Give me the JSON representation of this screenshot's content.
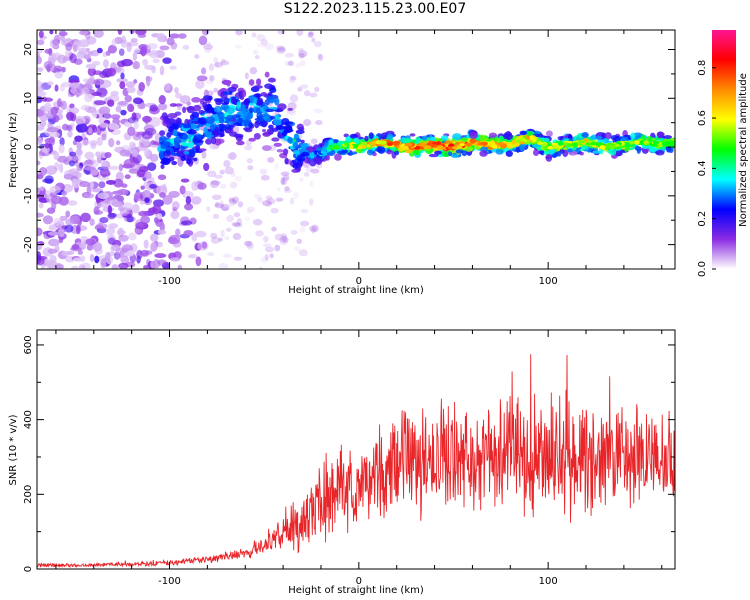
{
  "page": {
    "title": "S122.2023.115.23.00.E07"
  },
  "chart_data": [
    {
      "type": "heatmap",
      "xlabel": "Height of straight line (km)",
      "ylabel": "Frequency (Hz)",
      "xlim": [
        -170,
        167
      ],
      "ylim": [
        -25,
        24
      ],
      "x_ticks": [
        -100,
        0,
        100
      ],
      "y_ticks": [
        -20,
        -10,
        0,
        10,
        20
      ],
      "colorbar": {
        "label": "Normalized spectral amplitude",
        "range": [
          0.0,
          0.95
        ],
        "ticks": [
          "0.0",
          "0.2",
          "0.4",
          "0.6",
          "0.8"
        ],
        "colors": [
          "#ffffff",
          "#8a2be2",
          "#0000ff",
          "#00ffff",
          "#00ff00",
          "#ffff00",
          "#ff8c00",
          "#ff0000",
          "#ff1493"
        ]
      },
      "ridge": {
        "x": [
          -105,
          -95,
          -90,
          -85,
          -80,
          -75,
          -70,
          -65,
          -60,
          -55,
          -50,
          -45,
          -40,
          -35,
          -30,
          -25,
          -20,
          -15,
          -10,
          -5,
          0,
          10,
          20,
          30,
          40,
          50,
          60,
          70,
          80,
          85,
          90,
          95,
          100,
          110,
          120,
          130,
          140,
          150,
          160,
          167
        ],
        "y": [
          0,
          2,
          1,
          3,
          5,
          6,
          7,
          8,
          6,
          9,
          7,
          8,
          4,
          1,
          0,
          -2,
          -1,
          0,
          0,
          0.5,
          0,
          1,
          0.5,
          0,
          0.5,
          0,
          1,
          0.5,
          0.5,
          1,
          2,
          1,
          0,
          0.5,
          1,
          0,
          0.5,
          1,
          0.5,
          1
        ],
        "amp": [
          0.25,
          0.3,
          0.35,
          0.3,
          0.35,
          0.3,
          0.35,
          0.3,
          0.3,
          0.3,
          0.25,
          0.3,
          0.25,
          0.35,
          0.3,
          0.35,
          0.3,
          0.45,
          0.5,
          0.6,
          0.65,
          0.7,
          0.8,
          0.8,
          0.85,
          0.8,
          0.75,
          0.7,
          0.7,
          0.65,
          0.7,
          0.65,
          0.6,
          0.6,
          0.65,
          0.6,
          0.55,
          0.6,
          0.55,
          0.55
        ]
      }
    },
    {
      "type": "line",
      "xlabel": "Height of straight line (km)",
      "ylabel": "SNR (10 * v/v)",
      "xlim": [
        -170,
        167
      ],
      "ylim": [
        0,
        640
      ],
      "x_ticks": [
        -100,
        0,
        100
      ],
      "y_ticks": [
        0,
        200,
        400,
        600
      ],
      "color": "#e8262a",
      "series": [
        {
          "x": [
            -170,
            -150,
            -130,
            -110,
            -90,
            -80,
            -70,
            -60,
            -50,
            -40,
            -30,
            -20,
            -10,
            0,
            10,
            20,
            30,
            40,
            50,
            60,
            70,
            80,
            90,
            100,
            110,
            120,
            130,
            140,
            150,
            160,
            167
          ],
          "y": [
            10,
            10,
            12,
            14,
            20,
            25,
            35,
            45,
            60,
            90,
            130,
            170,
            200,
            220,
            250,
            270,
            290,
            300,
            300,
            290,
            300,
            310,
            300,
            310,
            300,
            300,
            300,
            290,
            300,
            280,
            280
          ],
          "spread": [
            6,
            6,
            6,
            8,
            10,
            12,
            15,
            20,
            30,
            50,
            90,
            110,
            120,
            130,
            140,
            160,
            170,
            170,
            170,
            170,
            170,
            180,
            180,
            180,
            190,
            180,
            170,
            170,
            160,
            160,
            150
          ]
        }
      ]
    }
  ]
}
